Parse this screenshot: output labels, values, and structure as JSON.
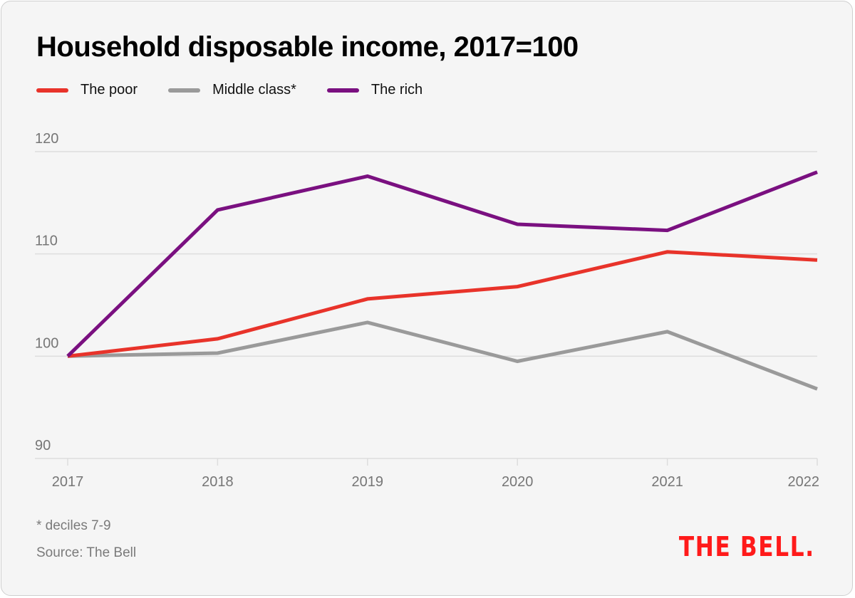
{
  "chart_data": {
    "type": "line",
    "title": "Household disposable income, 2017=100",
    "xlabel": "",
    "ylabel": "",
    "x": [
      "2017",
      "2018",
      "2019",
      "2020",
      "2021",
      "2022"
    ],
    "ylim": [
      90,
      120
    ],
    "yticks": [
      90,
      100,
      110,
      120
    ],
    "grid": true,
    "legend_position": "top-left",
    "series": [
      {
        "name": "The poor",
        "color": "#e8332a",
        "values": [
          100,
          101.7,
          105.6,
          106.8,
          110.2,
          109.4
        ]
      },
      {
        "name": "Middle class*",
        "color": "#9a9a9a",
        "values": [
          100,
          100.3,
          103.3,
          99.5,
          102.4,
          96.8
        ]
      },
      {
        "name": "The rich",
        "color": "#7a1080",
        "values": [
          100,
          114.3,
          117.6,
          112.9,
          112.3,
          118.0
        ]
      }
    ]
  },
  "header": {
    "title": "Household disposable income, 2017=100"
  },
  "legend": [
    {
      "label": "The poor",
      "color": "#e8332a"
    },
    {
      "label": "Middle class*",
      "color": "#9a9a9a"
    },
    {
      "label": "The rich",
      "color": "#7a1080"
    }
  ],
  "footer": {
    "footnote": "* deciles 7-9",
    "source": "Source: The Bell",
    "logo": "THE BELL."
  },
  "colors": {
    "background": "#f5f5f5",
    "grid": "#dddddd",
    "axis_text": "#767676",
    "brand": "#ff1a1a"
  }
}
